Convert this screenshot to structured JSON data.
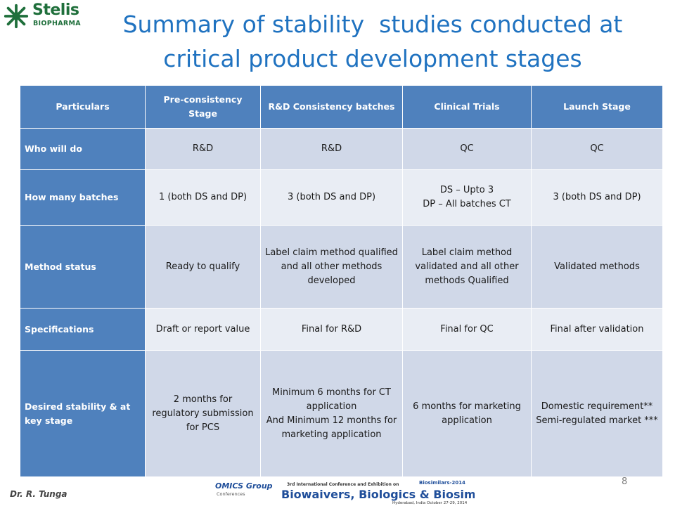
{
  "logo": {
    "name": "Stelis",
    "sub": "BIOPHARMA"
  },
  "title": {
    "line1": "Summary of stability  studies conducted at",
    "line2": "critical product development stages"
  },
  "table": {
    "headers": [
      "Particulars",
      "Pre-consistency Stage",
      "R&D Consistency batches",
      "Clinical Trials",
      "Launch Stage"
    ],
    "rows": [
      {
        "label": "Who will do",
        "cells": [
          [
            "R&D"
          ],
          [
            "R&D"
          ],
          [
            "QC"
          ],
          [
            "QC"
          ]
        ]
      },
      {
        "label": "How many batches",
        "cells": [
          [
            "1 (both DS and DP)"
          ],
          [
            "3 (both DS and DP)"
          ],
          [
            "DS – Upto 3",
            "DP – All batches CT"
          ],
          [
            "3 (both DS and DP)"
          ]
        ]
      },
      {
        "label": "Method status",
        "cells": [
          [
            "Ready to qualify"
          ],
          [
            "Label claim method qualified and all other methods developed"
          ],
          [
            "Label claim method validated and all other methods Qualified"
          ],
          [
            "Validated methods"
          ]
        ]
      },
      {
        "label": "Specifications",
        "cells": [
          [
            "Draft or report value"
          ],
          [
            "Final for R&D"
          ],
          [
            "Final for QC"
          ],
          [
            "Final after validation"
          ]
        ]
      },
      {
        "label": "Desired stability & at key stage",
        "cells": [
          [
            "2 months for regulatory submission for PCS"
          ],
          [
            "Minimum 6 months for CT application",
            "And Minimum 12 months for marketing application"
          ],
          [
            "6 months for marketing application"
          ],
          [
            "Domestic requirement**",
            "Semi-regulated market ***"
          ]
        ]
      }
    ]
  },
  "footer": {
    "author": "Dr. R. Tunga",
    "page_number": "8",
    "banner": {
      "brand": "OMICS Group",
      "brand_sub": "Conferences",
      "event_tag": "Biosimilars-2014",
      "conference_line": "3rd International Conference and Exhibition on",
      "headline": "Biowaivers, Biologics & Biosimilars",
      "venue": "Hyderabad, India  October 27-29, 2014"
    }
  },
  "colors": {
    "title": "#1f72c0",
    "header": "#4f81bd",
    "row_odd": "#d0d8e8",
    "row_even": "#e9edf4",
    "logo": "#1f6f3b"
  }
}
